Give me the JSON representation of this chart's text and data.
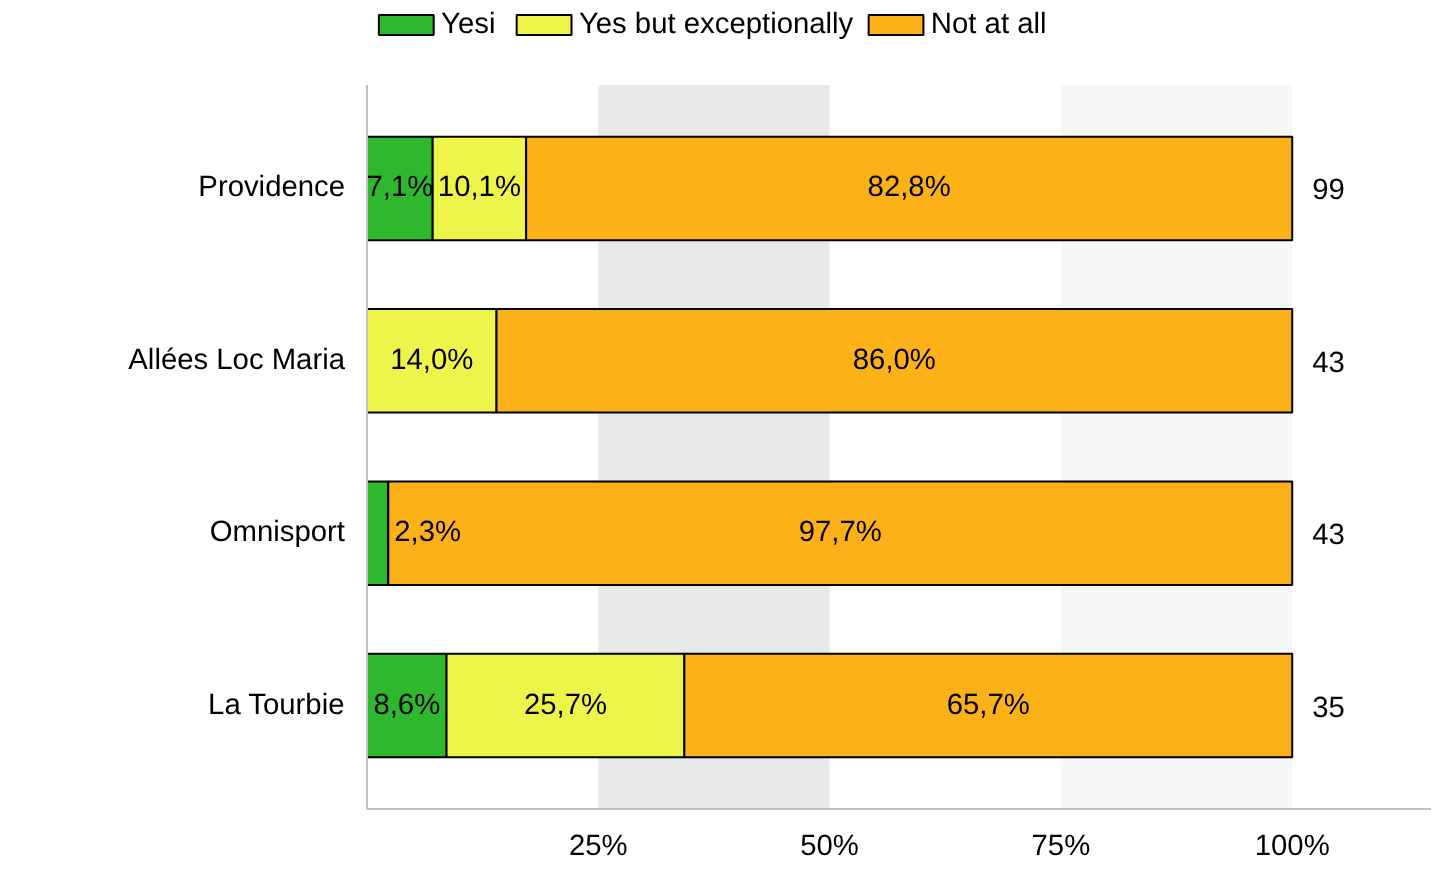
{
  "chart_data": {
    "type": "bar",
    "orientation": "horizontal",
    "stacked": true,
    "categories": [
      "Providence",
      "Allées Loc Maria",
      "Omnisport",
      "La Tourbie"
    ],
    "series": [
      {
        "name": "Yesi",
        "color": "#2db82d",
        "values": [
          7.1,
          0,
          2.3,
          8.6
        ],
        "value_labels": [
          "7,1%",
          null,
          "2,3%",
          "8,6%"
        ]
      },
      {
        "name": "Yes but exceptionally",
        "color": "#eef54a",
        "values": [
          10.1,
          14.0,
          0,
          25.7
        ],
        "value_labels": [
          "10,1%",
          "14,0%",
          null,
          "25,7%"
        ]
      },
      {
        "name": "Not at all",
        "color": "#fbb117",
        "values": [
          82.8,
          86.0,
          97.7,
          65.7
        ],
        "value_labels": [
          "82,8%",
          "86,0%",
          "97,7%",
          "65,7%"
        ]
      }
    ],
    "xlim": [
      0,
      115
    ],
    "xticks": [
      {
        "value": 25,
        "label": "25%"
      },
      {
        "value": 50,
        "label": "50%"
      },
      {
        "value": 75,
        "label": "75%"
      },
      {
        "value": 100,
        "label": "100%"
      }
    ],
    "bands": [
      {
        "axis": "x",
        "from": 25,
        "to": 50,
        "color": "#e8e9e9"
      },
      {
        "axis": "x",
        "from": 75,
        "to": 100,
        "color": "#f5f6f6"
      }
    ],
    "annotations": [
      "99",
      "43",
      "43",
      "35"
    ],
    "legend": "top left",
    "grid": false
  }
}
